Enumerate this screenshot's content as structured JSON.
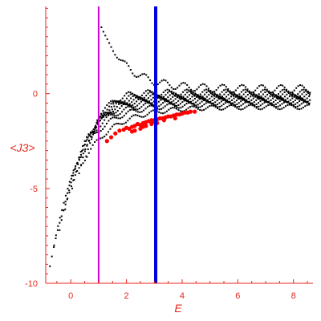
{
  "chart_data": {
    "type": "scatter",
    "title": "",
    "xlabel": "E",
    "ylabel": "<J3>",
    "xlim": [
      -0.9,
      8.7
    ],
    "ylim": [
      -10,
      4.6
    ],
    "x_ticks": [
      0,
      2,
      4,
      6,
      8
    ],
    "y_ticks": [
      -10,
      -5,
      0
    ],
    "x_tick_labels": [
      "0",
      "2",
      "4",
      "6",
      "8"
    ],
    "y_tick_labels": [
      "-10",
      "-5",
      "0"
    ],
    "grid": false,
    "legend": "none",
    "vertical_lines": [
      {
        "x": 1.0,
        "color": "#d400d4"
      },
      {
        "x": 3.05,
        "color": "#0000e0"
      }
    ],
    "series": [
      {
        "color": "#000000",
        "marker": "small-square",
        "values_description": "family of oscillating point curves",
        "curves": [
          {
            "E_start": -0.75,
            "J_start": -9.1
          },
          {
            "E_start": -0.6,
            "J_start": -8.0
          },
          {
            "E_start": -0.4,
            "J_start": -7.2
          },
          {
            "E_start": -0.2,
            "J_start": -6.1
          },
          {
            "E_start": 0.05,
            "J_start": -5.0
          },
          {
            "E_start": 0.3,
            "J_start": -4.2
          },
          {
            "E_start": 0.55,
            "J_start": -3.3
          },
          {
            "E_start": 0.75,
            "J_start": -2.4
          },
          {
            "E_start": 0.95,
            "J_start": -1.4
          },
          {
            "E_start": 1.1,
            "J_start": 3.5
          }
        ],
        "asymptote_upper": 0.1,
        "asymptote_lower": -0.7
      },
      {
        "color": "#ff0000",
        "marker": "dot",
        "points": [
          [
            1.75,
            -1.95
          ],
          [
            1.9,
            -1.9
          ],
          [
            2.0,
            -1.8
          ],
          [
            2.1,
            -1.85
          ],
          [
            2.2,
            -1.75
          ],
          [
            2.3,
            -1.7
          ],
          [
            2.4,
            -1.6
          ],
          [
            2.5,
            -1.65
          ],
          [
            2.6,
            -1.55
          ],
          [
            2.7,
            -1.5
          ],
          [
            2.8,
            -1.45
          ],
          [
            2.9,
            -1.4
          ],
          [
            3.0,
            -1.4
          ],
          [
            3.1,
            -1.35
          ],
          [
            3.2,
            -1.3
          ],
          [
            3.3,
            -1.3
          ],
          [
            3.4,
            -1.25
          ],
          [
            3.5,
            -1.2
          ],
          [
            3.6,
            -1.2
          ],
          [
            3.7,
            -1.15
          ],
          [
            3.8,
            -1.1
          ],
          [
            3.9,
            -1.1
          ],
          [
            4.0,
            -1.05
          ],
          [
            4.1,
            -1.0
          ],
          [
            4.2,
            -1.0
          ],
          [
            2.3,
            -1.95
          ],
          [
            2.5,
            -1.85
          ],
          [
            2.7,
            -1.7
          ],
          [
            2.9,
            -1.6
          ],
          [
            3.1,
            -1.55
          ],
          [
            1.45,
            -2.3
          ],
          [
            1.6,
            -2.1
          ],
          [
            1.3,
            -2.5
          ],
          [
            2.2,
            -2.0
          ],
          [
            2.6,
            -1.75
          ],
          [
            2.95,
            -1.5
          ],
          [
            3.35,
            -1.4
          ],
          [
            3.75,
            -1.3
          ],
          [
            4.3,
            -0.95
          ],
          [
            4.45,
            -0.95
          ]
        ]
      }
    ]
  }
}
